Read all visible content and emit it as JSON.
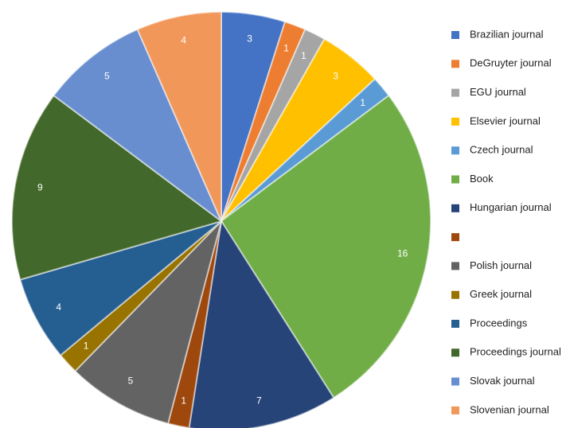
{
  "chart_data": {
    "type": "pie",
    "categories": [
      "Brazilian journal",
      "DeGruyter journal",
      "EGU journal",
      "Elsevier journal",
      "Czech journal",
      "Book",
      "Hungarian journal",
      null,
      "Polish journal",
      "Greek journal",
      "Proceedings",
      "Proceedings journal",
      "Slovak journal",
      "Slovenian journal"
    ],
    "values": [
      3,
      1,
      1,
      3,
      1,
      16,
      7,
      1,
      5,
      1,
      4,
      9,
      5,
      4
    ],
    "colors": [
      "#4472c4",
      "#ed7d31",
      "#a5a5a5",
      "#ffc000",
      "#5b9bd5",
      "#70ad47",
      "#264478",
      "#9e480e",
      "#636363",
      "#997300",
      "#255e91",
      "#43682b",
      "#698ed0",
      "#f1975a"
    ],
    "legend": "right"
  }
}
